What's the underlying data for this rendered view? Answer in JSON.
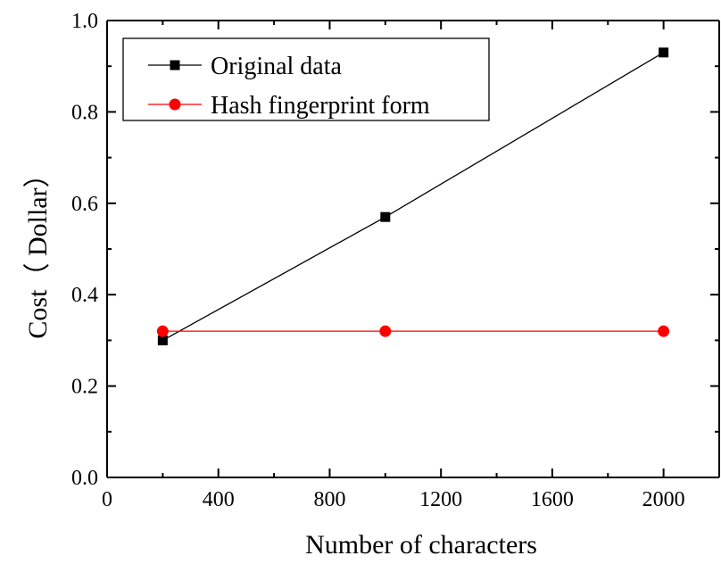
{
  "chart_data": {
    "type": "line",
    "xlabel": "Number of characters",
    "ylabel": "Cost（ Dollar）",
    "xlim": [
      0,
      2200
    ],
    "ylim": [
      0.0,
      1.0
    ],
    "x_ticks": [
      "0",
      "400",
      "800",
      "1200",
      "1600",
      "2000"
    ],
    "y_ticks": [
      "0.0",
      "0.2",
      "0.4",
      "0.6",
      "0.8",
      "1.0"
    ],
    "grid": false,
    "legend_position": "top-left",
    "x": [
      200,
      1000,
      2000
    ],
    "series": [
      {
        "name": "Original data",
        "values": [
          0.3,
          0.57,
          0.93
        ],
        "color": "#000000",
        "marker": "square"
      },
      {
        "name": "Hash fingerprint form",
        "values": [
          0.32,
          0.32,
          0.32
        ],
        "color": "#ff0000",
        "marker": "circle"
      }
    ]
  }
}
